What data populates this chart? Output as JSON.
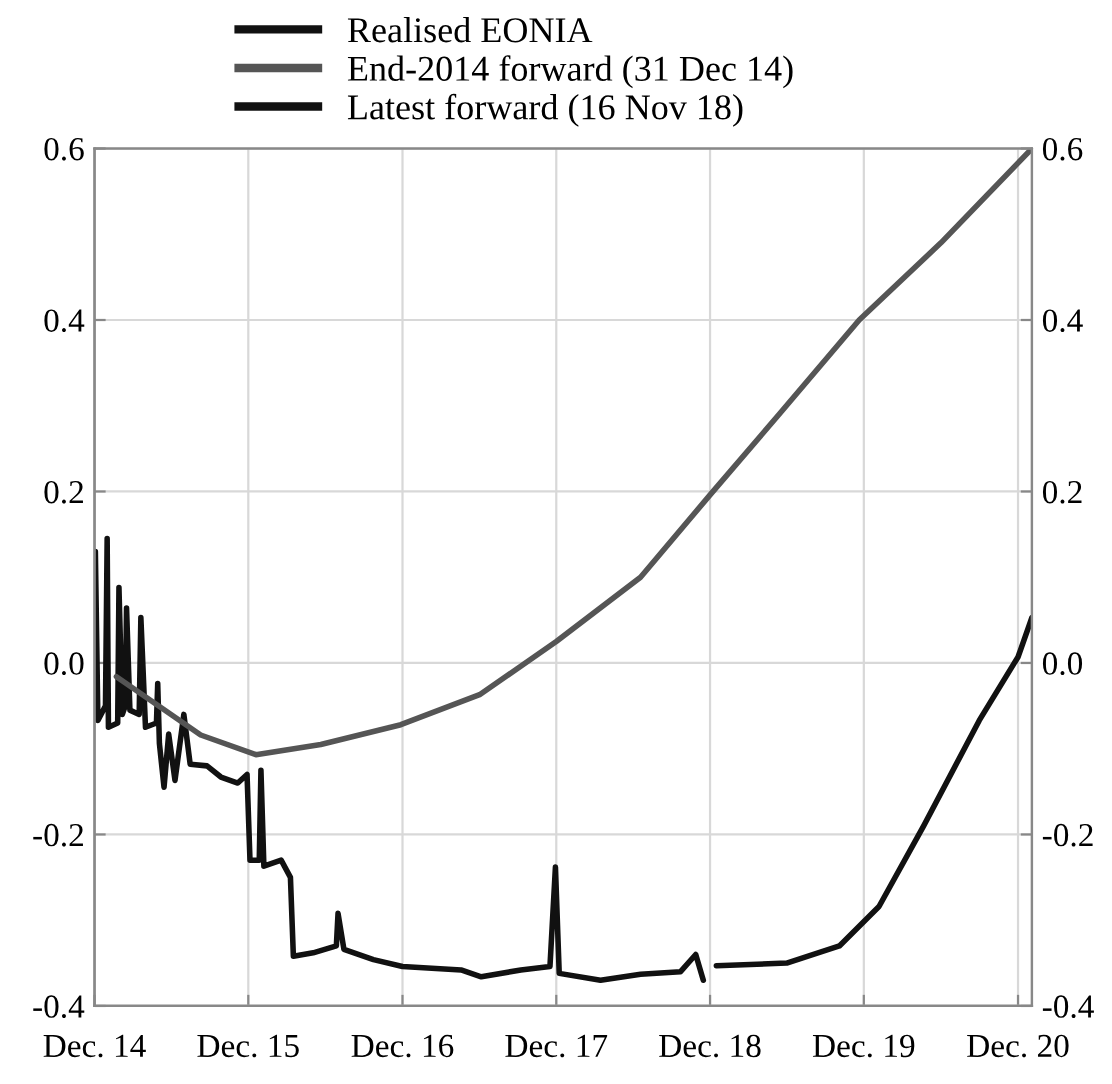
{
  "chart_data": {
    "type": "line",
    "xlim": [
      "2014-12-31",
      "2021-02-02"
    ],
    "xticks": [
      {
        "value": "2014-12-31",
        "label": "Dec. 14"
      },
      {
        "value": "2015-12-31",
        "label": "Dec. 15"
      },
      {
        "value": "2016-12-31",
        "label": "Dec. 16"
      },
      {
        "value": "2017-12-31",
        "label": "Dec. 17"
      },
      {
        "value": "2018-12-31",
        "label": "Dec. 18"
      },
      {
        "value": "2019-12-31",
        "label": "Dec. 19"
      },
      {
        "value": "2020-12-31",
        "label": "Dec. 20"
      }
    ],
    "ylim": [
      -0.4,
      0.6
    ],
    "yticks": [
      {
        "value": -0.4,
        "label": "-0.4"
      },
      {
        "value": -0.2,
        "label": "-0.2"
      },
      {
        "value": 0,
        "label": "0.0"
      },
      {
        "value": 0.2,
        "label": "0.2"
      },
      {
        "value": 0.4,
        "label": "0.4"
      },
      {
        "value": 0.6,
        "label": "0.6"
      }
    ],
    "y2lim": [
      -0.4,
      0.6
    ],
    "y2ticks": [
      {
        "value": -0.4,
        "label": "-0.4"
      },
      {
        "value": -0.2,
        "label": "-0.2"
      },
      {
        "value": 0,
        "label": "0.0"
      },
      {
        "value": 0.2,
        "label": "0.2"
      },
      {
        "value": 0.4,
        "label": "0.4"
      },
      {
        "value": 0.6,
        "label": "0.6"
      }
    ],
    "grid": true,
    "legend": "top",
    "line_style": "solid",
    "marker": "none",
    "series": [
      {
        "name": "Realised EONIA",
        "color": "#111111",
        "x": [
          "2014-12-31",
          "2015-01-02",
          "2015-01-08",
          "2015-01-26",
          "2015-01-30",
          "2015-02-02",
          "2015-02-24",
          "2015-02-27",
          "2015-03-07",
          "2015-03-14",
          "2015-03-17",
          "2015-03-25",
          "2015-04-16",
          "2015-04-20",
          "2015-05-01",
          "2015-05-27",
          "2015-05-30",
          "2015-06-03",
          "2015-06-14",
          "2015-06-25",
          "2015-07-10",
          "2015-07-31",
          "2015-08-15",
          "2015-09-24",
          "2015-10-27",
          "2015-12-06",
          "2015-12-28",
          "2016-01-04",
          "2016-01-26",
          "2016-01-30",
          "2016-02-06",
          "2016-03-18",
          "2016-04-09",
          "2016-04-16",
          "2016-06-02",
          "2016-07-27",
          "2016-07-31",
          "2016-08-14",
          "2016-10-23",
          "2016-12-31",
          "2017-05-19",
          "2017-07-06",
          "2017-10-08",
          "2017-12-16",
          "2017-12-29",
          "2018-01-07",
          "2018-04-15",
          "2018-07-19",
          "2018-10-22",
          "2018-11-27",
          "2018-12-15"
        ],
        "values": [
          -0.036,
          0.13,
          -0.067,
          -0.05,
          0.145,
          -0.075,
          -0.07,
          0.088,
          -0.06,
          -0.05,
          0.064,
          -0.055,
          -0.06,
          0.053,
          -0.075,
          -0.07,
          -0.024,
          -0.094,
          -0.145,
          -0.083,
          -0.137,
          -0.06,
          -0.118,
          -0.12,
          -0.133,
          -0.14,
          -0.13,
          -0.23,
          -0.23,
          -0.125,
          -0.237,
          -0.23,
          -0.25,
          -0.342,
          -0.338,
          -0.33,
          -0.292,
          -0.334,
          -0.346,
          -0.354,
          -0.358,
          -0.366,
          -0.358,
          -0.354,
          -0.238,
          -0.362,
          -0.37,
          -0.363,
          -0.36,
          -0.34,
          -0.37
        ]
      },
      {
        "name": "End-2014 forward (31 Dec 14)",
        "color": "#555555",
        "x": [
          "2015-02-21",
          "2015-09-09",
          "2016-01-18",
          "2016-06-20",
          "2016-12-27",
          "2017-07-02",
          "2017-12-31",
          "2018-07-19",
          "2018-12-31",
          "2019-06-13",
          "2019-12-20",
          "2020-07-01",
          "2021-02-02"
        ],
        "values": [
          -0.016,
          -0.084,
          -0.107,
          -0.095,
          -0.072,
          -0.037,
          0.025,
          0.1,
          0.196,
          0.29,
          0.4,
          0.49,
          0.6
        ]
      },
      {
        "name": "Latest forward (16 Nov 18)",
        "color": "#111111",
        "x": [
          "2019-01-15",
          "2019-07-01",
          "2019-11-03",
          "2020-02-05",
          "2020-05-21",
          "2020-09-30",
          "2020-12-31",
          "2021-02-02"
        ],
        "values": [
          -0.353,
          -0.35,
          -0.33,
          -0.284,
          -0.19,
          -0.067,
          0.007,
          0.053
        ]
      }
    ]
  }
}
